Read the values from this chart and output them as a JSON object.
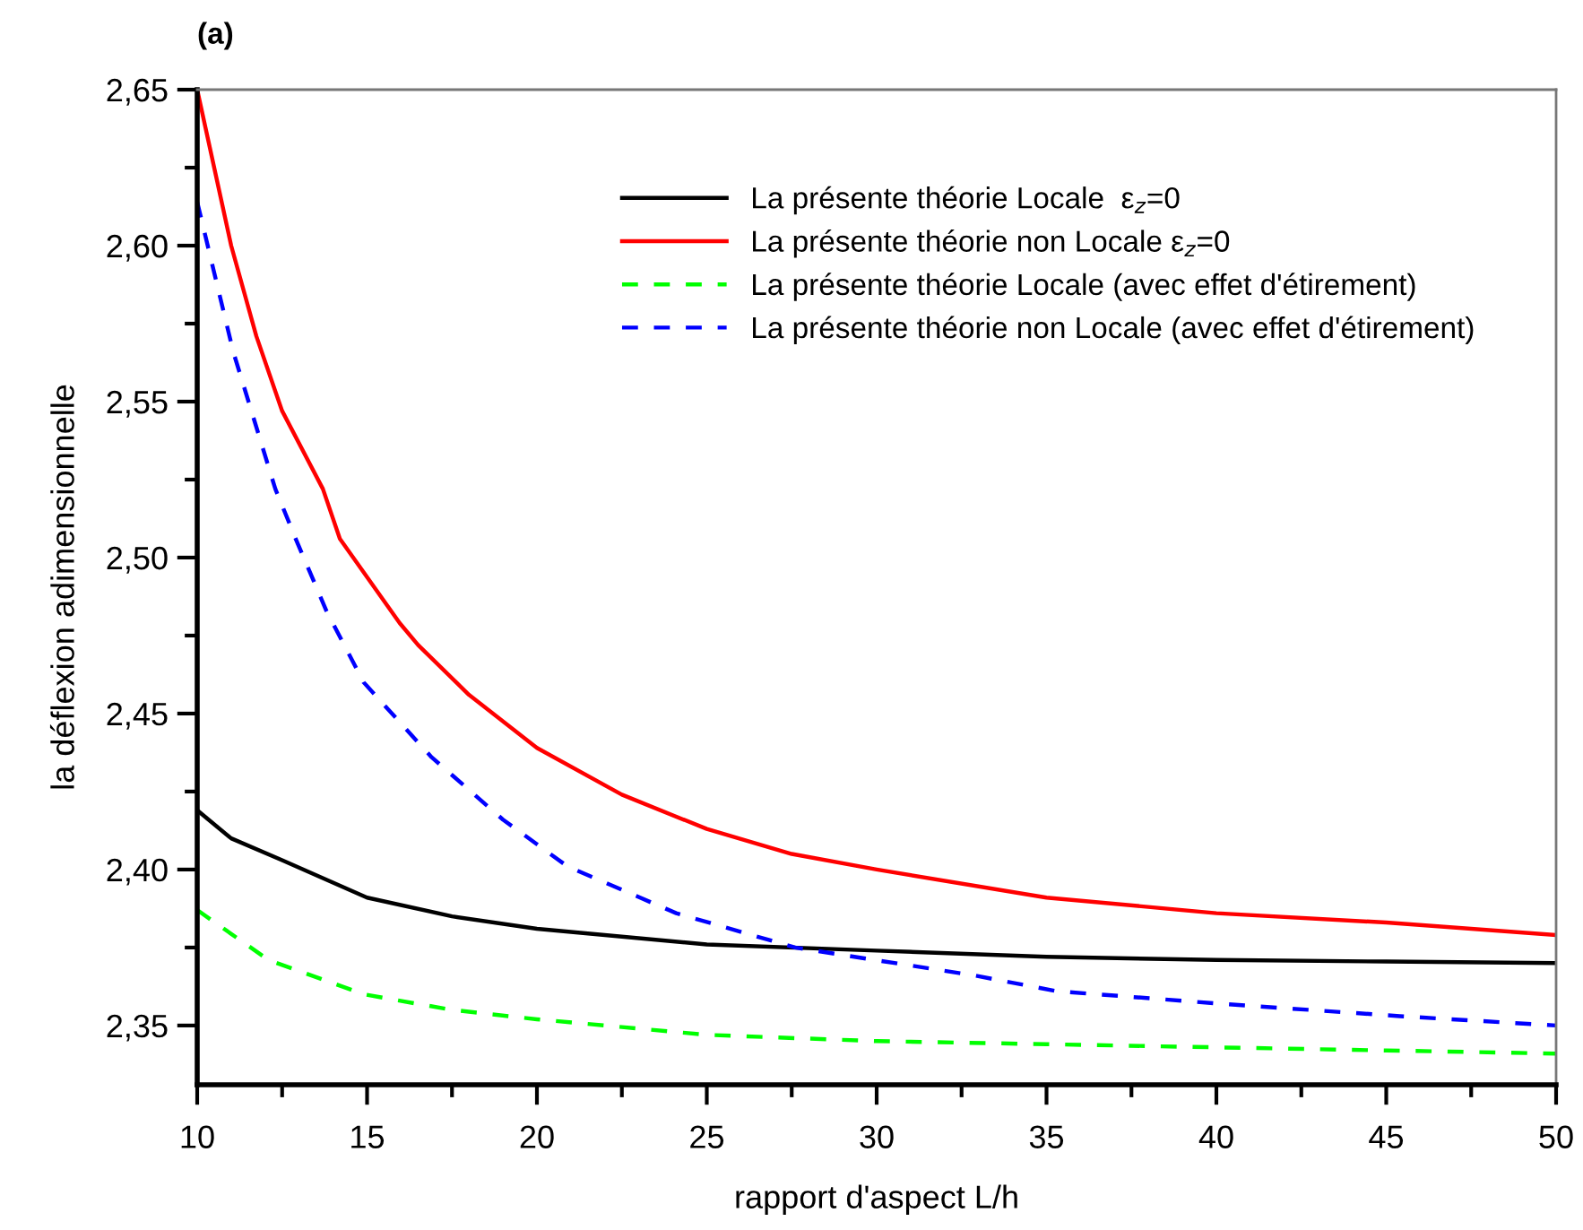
{
  "chart_data": {
    "type": "line",
    "xlabel": "rapport d'aspect L/h",
    "ylabel": "la déflexion adimensionnelle",
    "annotations": [
      "(a)"
    ],
    "xlim": [
      10,
      50
    ],
    "xticks": [
      10,
      15,
      20,
      25,
      30,
      35,
      40,
      45,
      50
    ],
    "ylim": [
      2.331,
      2.65
    ],
    "yticks": [
      {
        "value": 2.35,
        "label": "2,35"
      },
      {
        "value": 2.4,
        "label": "2,40"
      },
      {
        "value": 2.45,
        "label": "2,45"
      },
      {
        "value": 2.5,
        "label": "2,50"
      },
      {
        "value": 2.55,
        "label": "2,55"
      },
      {
        "value": 2.6,
        "label": "2,60"
      },
      {
        "value": 2.65,
        "label": "2,65"
      }
    ],
    "grid": false,
    "legend": "top right",
    "marker": "none",
    "series": [
      {
        "name": "La présente théorie Locale  ε$_{z}$=0",
        "color": "#000000",
        "line_style": "solid",
        "x": [
          10,
          11,
          12.5,
          15,
          17.5,
          20,
          25,
          30,
          35,
          40,
          45,
          50
        ],
        "values": [
          2.419,
          2.41,
          2.403,
          2.391,
          2.385,
          2.381,
          2.376,
          2.374,
          2.372,
          2.371,
          2.3705,
          2.37
        ]
      },
      {
        "name": "La présente théorie non Locale ε$_{z}$=0",
        "color": "#ff0000",
        "line_style": "solid",
        "x": [
          10,
          11,
          11.74,
          12.5,
          13.7,
          14.2,
          15.96,
          16.5,
          18,
          20,
          22.5,
          25,
          27.5,
          30,
          35,
          40,
          45,
          50
        ],
        "values": [
          2.65,
          2.6,
          2.571,
          2.547,
          2.522,
          2.506,
          2.479,
          2.472,
          2.456,
          2.439,
          2.424,
          2.413,
          2.405,
          2.4,
          2.391,
          2.386,
          2.383,
          2.379
        ]
      },
      {
        "name": "La présente théorie Locale (avec effet d'étirement)",
        "color": "#00ff00",
        "line_style": "dashed",
        "x": [
          10,
          12.1,
          14.9,
          17.5,
          20,
          25,
          30,
          35,
          40,
          45,
          50
        ],
        "values": [
          2.387,
          2.371,
          2.36,
          2.355,
          2.352,
          2.347,
          2.345,
          2.344,
          2.343,
          2.342,
          2.341
        ]
      },
      {
        "name": "La présente théorie non Locale (avec effet d'étirement)",
        "color": "#0000ff",
        "line_style": "dashed",
        "x": [
          10,
          11.06,
          12.3,
          12.9,
          13.8,
          14.9,
          16.9,
          19,
          20.9,
          24.1,
          27.6,
          32.9,
          35.3,
          40.1,
          45.4,
          50
        ],
        "values": [
          2.614,
          2.566,
          2.522,
          2.506,
          2.483,
          2.46,
          2.436,
          2.416,
          2.401,
          2.386,
          2.375,
          2.366,
          2.361,
          2.357,
          2.353,
          2.35
        ]
      }
    ]
  }
}
